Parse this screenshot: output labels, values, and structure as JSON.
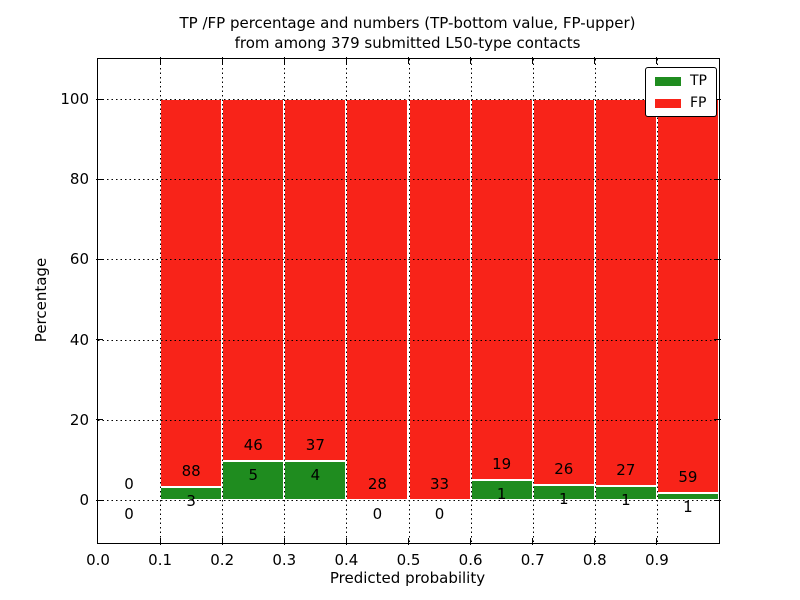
{
  "figure": {
    "title_line1": "TP /FP percentage and numbers (TP-bottom value, FP-upper)",
    "title_line2": "from among 379 submitted L50-type contacts"
  },
  "chart_data": {
    "type": "bar",
    "stacked": true,
    "title": "TP /FP percentage and numbers (TP-bottom value, FP-upper) from among 379 submitted L50-type contacts",
    "xlabel": "Predicted probability",
    "ylabel": "Percentage",
    "x_tick_labels": [
      "0.0",
      "0.1",
      "0.2",
      "0.3",
      "0.4",
      "0.5",
      "0.6",
      "0.7",
      "0.8",
      "0.9"
    ],
    "y_ticks": [
      0,
      20,
      40,
      60,
      80,
      100
    ],
    "xlim": [
      0.0,
      1.0
    ],
    "ylim": [
      -10.7,
      110.2
    ],
    "grid": "dotted",
    "total_contacts": 379,
    "legend": {
      "position": "upper right",
      "items": [
        {
          "label": "TP",
          "color": "#1f8c1f"
        },
        {
          "label": "FP",
          "color": "#f82319"
        }
      ]
    },
    "bins": [
      {
        "x_range": [
          0.0,
          0.1
        ],
        "tp_count": 0,
        "fp_count": 0,
        "tp_pct": 0
      },
      {
        "x_range": [
          0.1,
          0.2
        ],
        "tp_count": 3,
        "fp_count": 88,
        "tp_pct": 3.3
      },
      {
        "x_range": [
          0.2,
          0.3
        ],
        "tp_count": 5,
        "fp_count": 46,
        "tp_pct": 9.8
      },
      {
        "x_range": [
          0.3,
          0.4
        ],
        "tp_count": 4,
        "fp_count": 37,
        "tp_pct": 9.76
      },
      {
        "x_range": [
          0.4,
          0.5
        ],
        "tp_count": 0,
        "fp_count": 28,
        "tp_pct": 0
      },
      {
        "x_range": [
          0.5,
          0.6
        ],
        "tp_count": 0,
        "fp_count": 33,
        "tp_pct": 0
      },
      {
        "x_range": [
          0.6,
          0.7
        ],
        "tp_count": 1,
        "fp_count": 19,
        "tp_pct": 5.0
      },
      {
        "x_range": [
          0.7,
          0.8
        ],
        "tp_count": 1,
        "fp_count": 26,
        "tp_pct": 3.7
      },
      {
        "x_range": [
          0.8,
          0.9
        ],
        "tp_count": 1,
        "fp_count": 27,
        "tp_pct": 3.57
      },
      {
        "x_range": [
          0.9,
          1.0
        ],
        "tp_count": 1,
        "fp_count": 59,
        "tp_pct": 1.67
      }
    ]
  }
}
